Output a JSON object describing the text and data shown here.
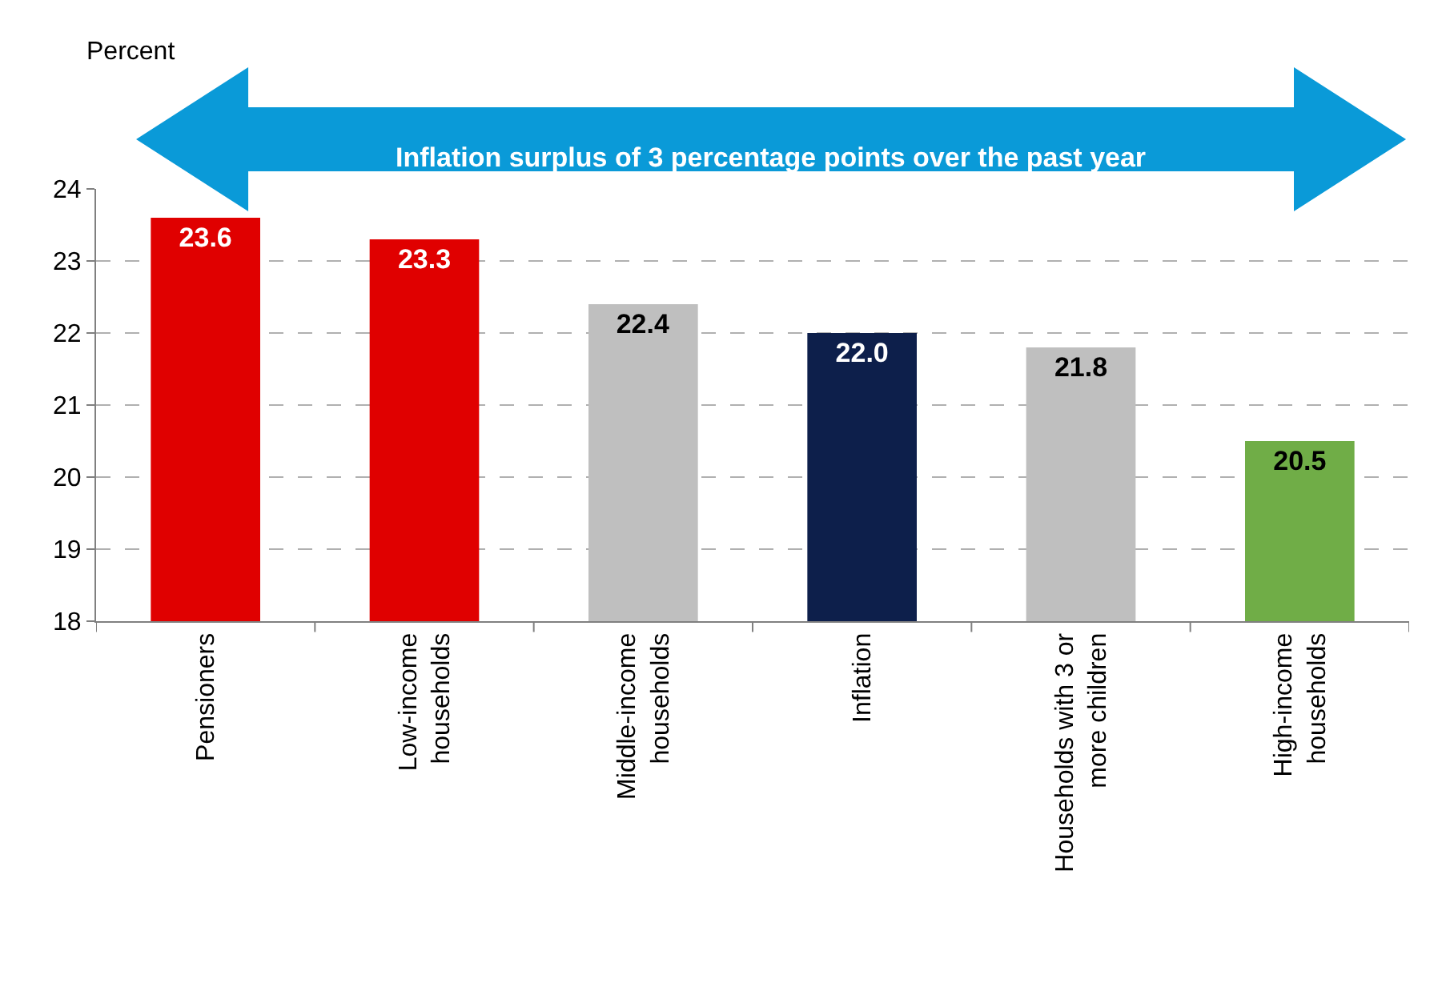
{
  "chart_data": {
    "type": "bar",
    "ylabel": "Percent",
    "annotations": [
      "Inflation surplus of 3 percentage points over the past year"
    ],
    "categories": [
      "Pensioners",
      "Low-income households",
      "Middle-income households",
      "Inflation",
      "Households with 3 or more children",
      "High-income households"
    ],
    "values": [
      23.6,
      23.3,
      22.4,
      22.0,
      21.8,
      20.5
    ],
    "value_labels": [
      "23.6",
      "23.3",
      "22.4",
      "22.0",
      "21.8",
      "20.5"
    ],
    "colors": [
      "#e00000",
      "#e00000",
      "#bfbfbf",
      "#0d1f4b",
      "#bfbfbf",
      "#70ad47"
    ],
    "ylim": [
      18,
      24
    ],
    "yticks": [
      18,
      19,
      20,
      21,
      22,
      23,
      24
    ],
    "grid": "y",
    "legend": false
  }
}
